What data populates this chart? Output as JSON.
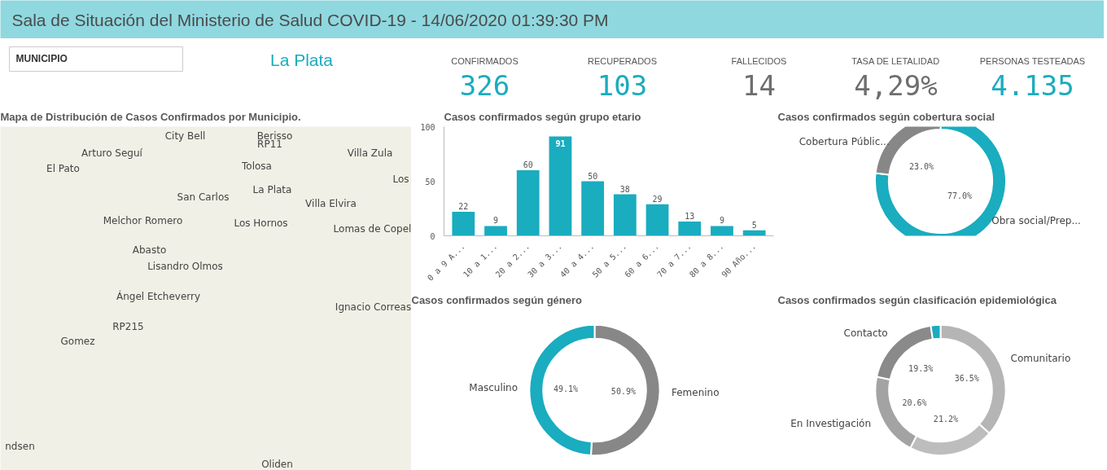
{
  "chart_data": [
    {
      "type": "other",
      "title": "Sala de Situación del Ministerio de Salud COVID-19 - 14/06/2020 01:39:30 PM"
    },
    {
      "type": "other",
      "annotations": [
        "MUNICIPIO",
        "La Plata",
        "CONFIRMADOS",
        "326",
        "RECUPERADOS",
        "103",
        "FALLECIDOS",
        "14",
        "TASA DE LETALIDAD",
        "4,29%",
        "PERSONAS TESTEADAS",
        "4.135"
      ]
    },
    {
      "type": "other",
      "title": "Mapa de Distribución de Casos Confirmados por Municipio.",
      "annotations": [
        "City Bell",
        "Berisso",
        "RP11",
        "Villa Zula",
        "Arturo Seguí",
        "El Pato",
        "Tolosa",
        "Los",
        "La Plata",
        "San Carlos",
        "Villa Elvira",
        "Melchor Romero",
        "Los Hornos",
        "Lomas de Copel",
        "Abasto",
        "Lisandro Olmos",
        "Ángel Etcheverry",
        "Ignacio Correas",
        "RP215",
        "Gomez",
        "ndsen",
        "Oliden"
      ]
    },
    {
      "type": "bar",
      "title": "Casos confirmados según grupo etario",
      "categories": [
        "0 a 9 A...",
        "10 a 1...",
        "20 a 2...",
        "30 a 3...",
        "40 a 4...",
        "50 a 5...",
        "60 a 6...",
        "70 a 7...",
        "80 a 8...",
        "90 Año..."
      ],
      "values": [
        22,
        9,
        60,
        91,
        50,
        38,
        29,
        13,
        9,
        5
      ],
      "color": "#1aacbf",
      "ylim": [
        0,
        100
      ],
      "yticks": [
        0,
        50,
        100
      ],
      "data_labels": true
    },
    {
      "type": "donut",
      "title": "Casos confirmados según cobertura social",
      "categories": [
        "Obra social/Prep...",
        "Cobertura Públic..."
      ],
      "values": [
        77.0,
        23.0
      ],
      "colors": [
        "#1aacbf",
        "#878787"
      ],
      "value_labels": [
        "77.0%",
        "23.0%"
      ]
    },
    {
      "type": "donut",
      "title": "Casos confirmados según género",
      "categories": [
        "Femenino",
        "Masculino"
      ],
      "values": [
        50.9,
        49.1
      ],
      "colors": [
        "#878787",
        "#1aacbf"
      ],
      "value_labels": [
        "50.9%",
        "49.1%"
      ]
    },
    {
      "type": "donut",
      "title": "Casos confirmados según clasificación epidemiológica",
      "categories": [
        "Comunitario",
        null,
        "En Investigación",
        "Contacto",
        null
      ],
      "values": [
        36.5,
        21.2,
        20.6,
        19.3,
        2.4
      ],
      "colors": [
        "#b5b5b5",
        "#bdbdbd",
        "#a3a3a3",
        "#8a8a8a",
        "#1aacbf"
      ],
      "value_labels": [
        "36.5%",
        "21.2%",
        "20.6%",
        "19.3%",
        null
      ]
    }
  ]
}
